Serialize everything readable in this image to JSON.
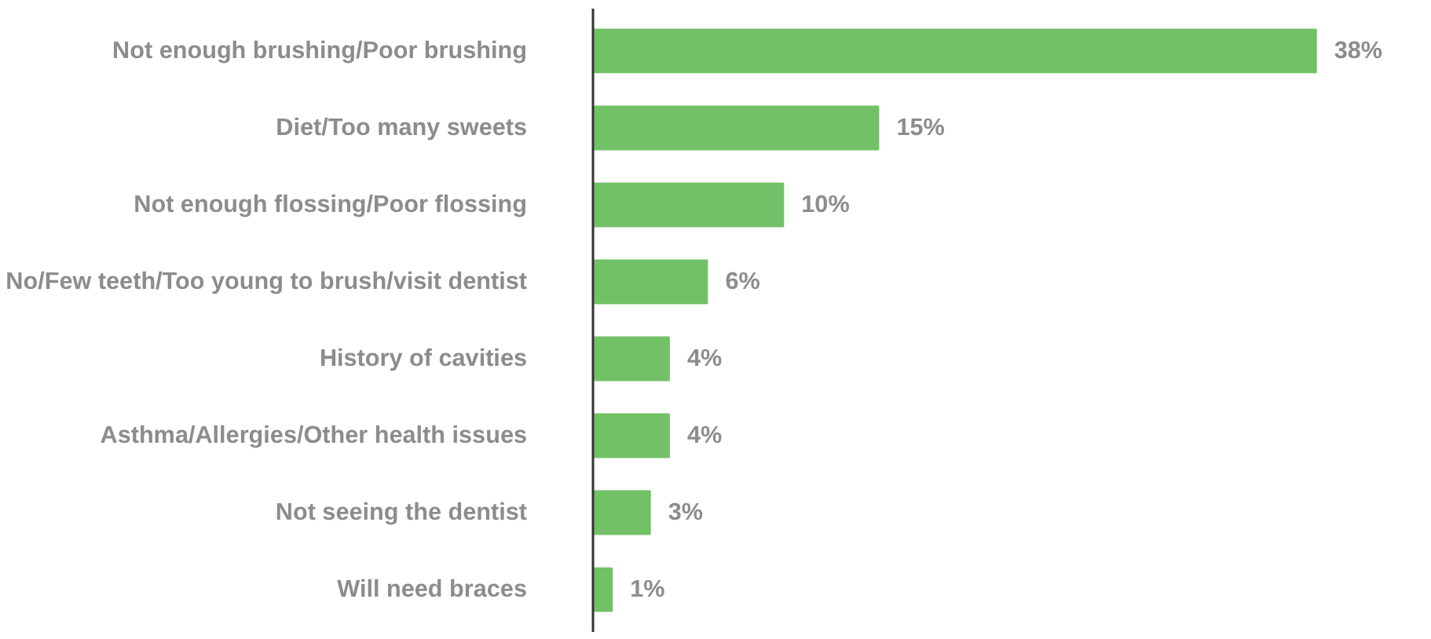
{
  "chart_data": {
    "type": "bar",
    "orientation": "horizontal",
    "categories": [
      "Not enough brushing/Poor brushing",
      "Diet/Too many sweets",
      "Not enough flossing/Poor flossing",
      "No/Few teeth/Too young to brush/visit dentist",
      "History of cavities",
      "Asthma/Allergies/Other health issues",
      "Not seeing the dentist",
      "Will need braces"
    ],
    "values": [
      38,
      15,
      10,
      6,
      4,
      4,
      3,
      1
    ],
    "value_labels": [
      "38%",
      "15%",
      "10%",
      "6%",
      "4%",
      "4%",
      "3%",
      "1%"
    ],
    "color": "#72c166"
  }
}
